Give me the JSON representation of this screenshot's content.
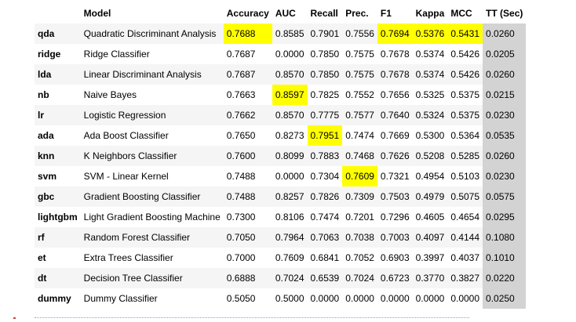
{
  "headers": [
    "",
    "Model",
    "Accuracy",
    "AUC",
    "Recall",
    "Prec.",
    "F1",
    "Kappa",
    "MCC",
    "TT (Sec)"
  ],
  "colors": {
    "highlight": "#ffff00",
    "tt_column": "#d3d3d3",
    "stripe": "#f5f5f5"
  },
  "rows": [
    {
      "idx": "qda",
      "model": "Quadratic Discriminant Analysis",
      "vals": [
        "0.7688",
        "0.8585",
        "0.7901",
        "0.7556",
        "0.7694",
        "0.5376",
        "0.5431",
        "0.0260"
      ],
      "hl": [
        0,
        4,
        5,
        6
      ]
    },
    {
      "idx": "ridge",
      "model": "Ridge Classifier",
      "vals": [
        "0.7687",
        "0.0000",
        "0.7850",
        "0.7575",
        "0.7678",
        "0.5374",
        "0.5426",
        "0.0205"
      ],
      "hl": []
    },
    {
      "idx": "lda",
      "model": "Linear Discriminant Analysis",
      "vals": [
        "0.7687",
        "0.8570",
        "0.7850",
        "0.7575",
        "0.7678",
        "0.5374",
        "0.5426",
        "0.0260"
      ],
      "hl": []
    },
    {
      "idx": "nb",
      "model": "Naive Bayes",
      "vals": [
        "0.7663",
        "0.8597",
        "0.7825",
        "0.7552",
        "0.7656",
        "0.5325",
        "0.5375",
        "0.0215"
      ],
      "hl": [
        1
      ]
    },
    {
      "idx": "lr",
      "model": "Logistic Regression",
      "vals": [
        "0.7662",
        "0.8570",
        "0.7775",
        "0.7577",
        "0.7640",
        "0.5324",
        "0.5375",
        "0.0230"
      ],
      "hl": []
    },
    {
      "idx": "ada",
      "model": "Ada Boost Classifier",
      "vals": [
        "0.7650",
        "0.8273",
        "0.7951",
        "0.7474",
        "0.7669",
        "0.5300",
        "0.5364",
        "0.0535"
      ],
      "hl": [
        2
      ]
    },
    {
      "idx": "knn",
      "model": "K Neighbors Classifier",
      "vals": [
        "0.7600",
        "0.8099",
        "0.7883",
        "0.7468",
        "0.7626",
        "0.5208",
        "0.5285",
        "0.0260"
      ],
      "hl": []
    },
    {
      "idx": "svm",
      "model": "SVM - Linear Kernel",
      "vals": [
        "0.7488",
        "0.0000",
        "0.7304",
        "0.7609",
        "0.7321",
        "0.4954",
        "0.5103",
        "0.0230"
      ],
      "hl": [
        3
      ]
    },
    {
      "idx": "gbc",
      "model": "Gradient Boosting Classifier",
      "vals": [
        "0.7488",
        "0.8257",
        "0.7826",
        "0.7309",
        "0.7503",
        "0.4979",
        "0.5075",
        "0.0575"
      ],
      "hl": []
    },
    {
      "idx": "lightgbm",
      "model": "Light Gradient Boosting Machine",
      "vals": [
        "0.7300",
        "0.8106",
        "0.7474",
        "0.7201",
        "0.7296",
        "0.4605",
        "0.4654",
        "0.0295"
      ],
      "hl": []
    },
    {
      "idx": "rf",
      "model": "Random Forest Classifier",
      "vals": [
        "0.7050",
        "0.7964",
        "0.7063",
        "0.7038",
        "0.7003",
        "0.4097",
        "0.4144",
        "0.1080"
      ],
      "hl": []
    },
    {
      "idx": "et",
      "model": "Extra Trees Classifier",
      "vals": [
        "0.7000",
        "0.7609",
        "0.6841",
        "0.7052",
        "0.6903",
        "0.3997",
        "0.4037",
        "0.1010"
      ],
      "hl": []
    },
    {
      "idx": "dt",
      "model": "Decision Tree Classifier",
      "vals": [
        "0.6888",
        "0.7024",
        "0.6539",
        "0.7024",
        "0.6723",
        "0.3770",
        "0.3827",
        "0.0220"
      ],
      "hl": []
    },
    {
      "idx": "dummy",
      "model": "Dummy Classifier",
      "vals": [
        "0.5050",
        "0.5000",
        "0.0000",
        "0.0000",
        "0.0000",
        "0.0000",
        "0.0000",
        "0.0250"
      ],
      "hl": []
    }
  ]
}
